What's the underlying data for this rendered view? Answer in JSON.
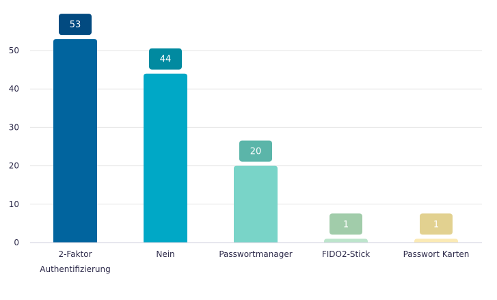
{
  "chart_data": {
    "type": "bar",
    "title": "",
    "xlabel": "",
    "ylabel": "",
    "categories": [
      [
        "2-Faktor",
        "Authentifizierung"
      ],
      [
        "Nein"
      ],
      [
        "Passwortmanager"
      ],
      [
        "FIDO2-Stick"
      ],
      [
        "Passwort Karten"
      ]
    ],
    "values": [
      53,
      44,
      20,
      1,
      1
    ],
    "value_labels": [
      "53",
      "44",
      "20",
      "1",
      "1"
    ],
    "yticks": [
      "0",
      "10",
      "20",
      "30",
      "40",
      "50"
    ],
    "ylim": [
      0,
      55
    ],
    "grid": true,
    "legend": "none",
    "bar_colors": [
      "#01649e",
      "#00a8c6",
      "#79d4c8",
      "#bde5cc",
      "#fbeab5"
    ],
    "label_colors": [
      "#024a80",
      "#018aa0",
      "#5bb5a9",
      "#a1ccaa",
      "#e2d190"
    ]
  }
}
